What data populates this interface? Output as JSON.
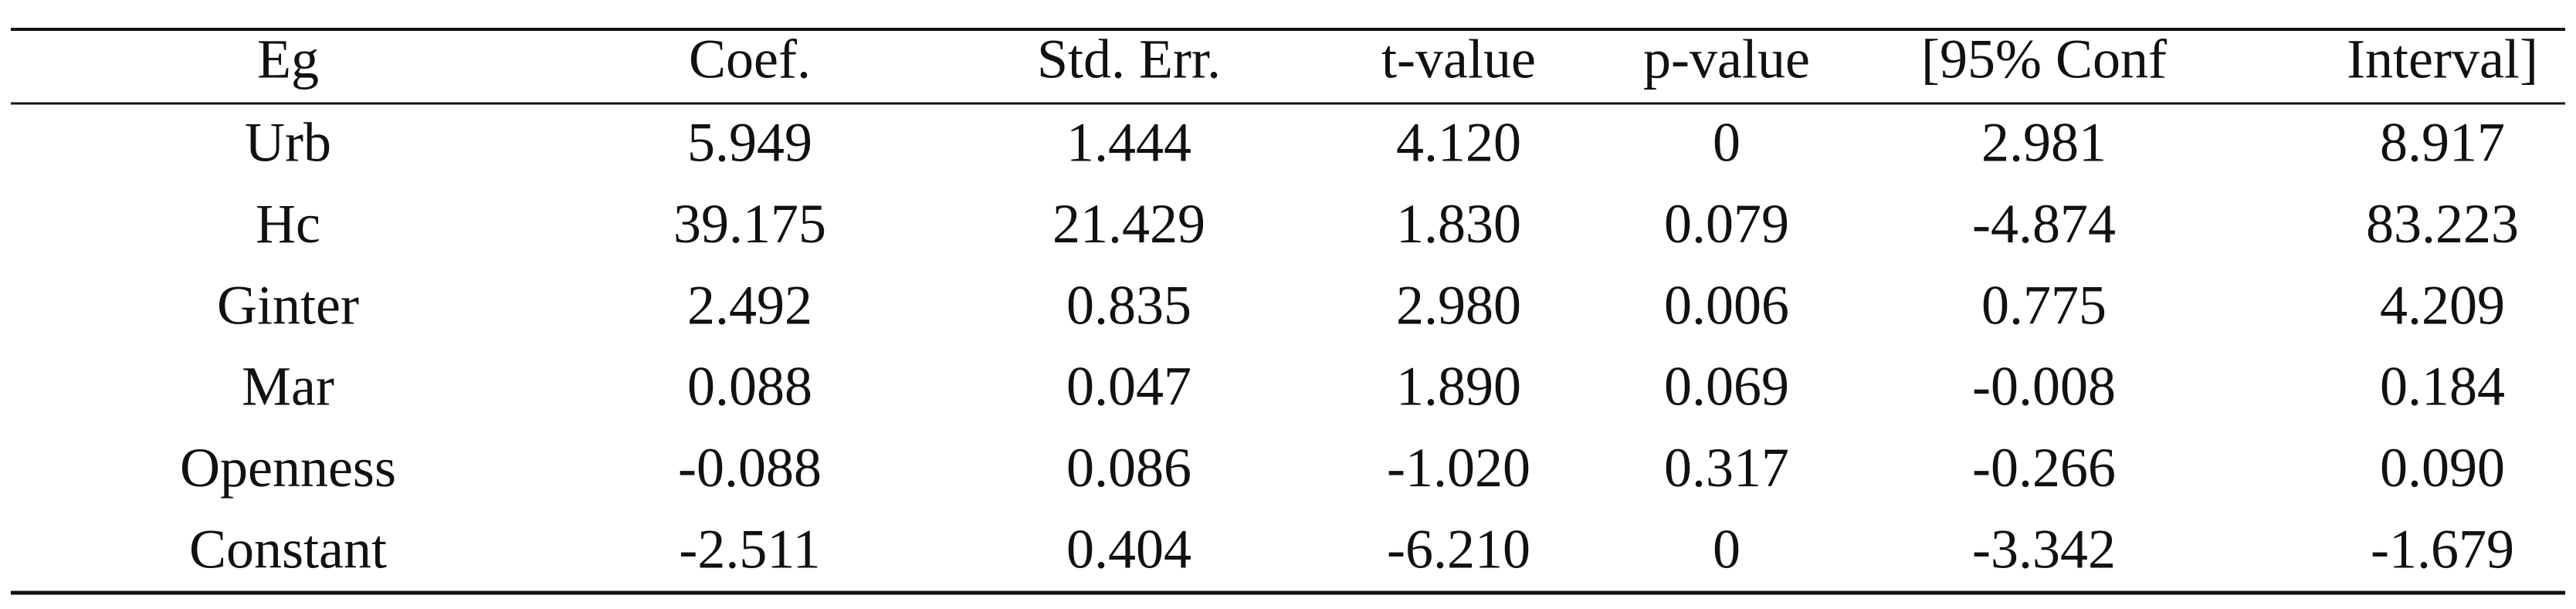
{
  "table": {
    "header": [
      "Eg",
      "Coef.",
      "Std. Err.",
      "t-value",
      "p-value",
      "[95% Conf",
      "Interval]"
    ],
    "rows": [
      [
        "Urb",
        "5.949",
        "1.444",
        "4.120",
        "0",
        "2.981",
        "8.917"
      ],
      [
        "Hc",
        "39.175",
        "21.429",
        "1.830",
        "0.079",
        "-4.874",
        "83.223"
      ],
      [
        "Ginter",
        "2.492",
        "0.835",
        "2.980",
        "0.006",
        "0.775",
        "4.209"
      ],
      [
        "Mar",
        "0.088",
        "0.047",
        "1.890",
        "0.069",
        "-0.008",
        "0.184"
      ],
      [
        "Openness",
        "-0.088",
        "0.086",
        "-1.020",
        "0.317",
        "-0.266",
        "0.090"
      ],
      [
        "Constant",
        "-2.511",
        "0.404",
        "-6.210",
        "0",
        "-3.342",
        "-1.679"
      ]
    ]
  }
}
